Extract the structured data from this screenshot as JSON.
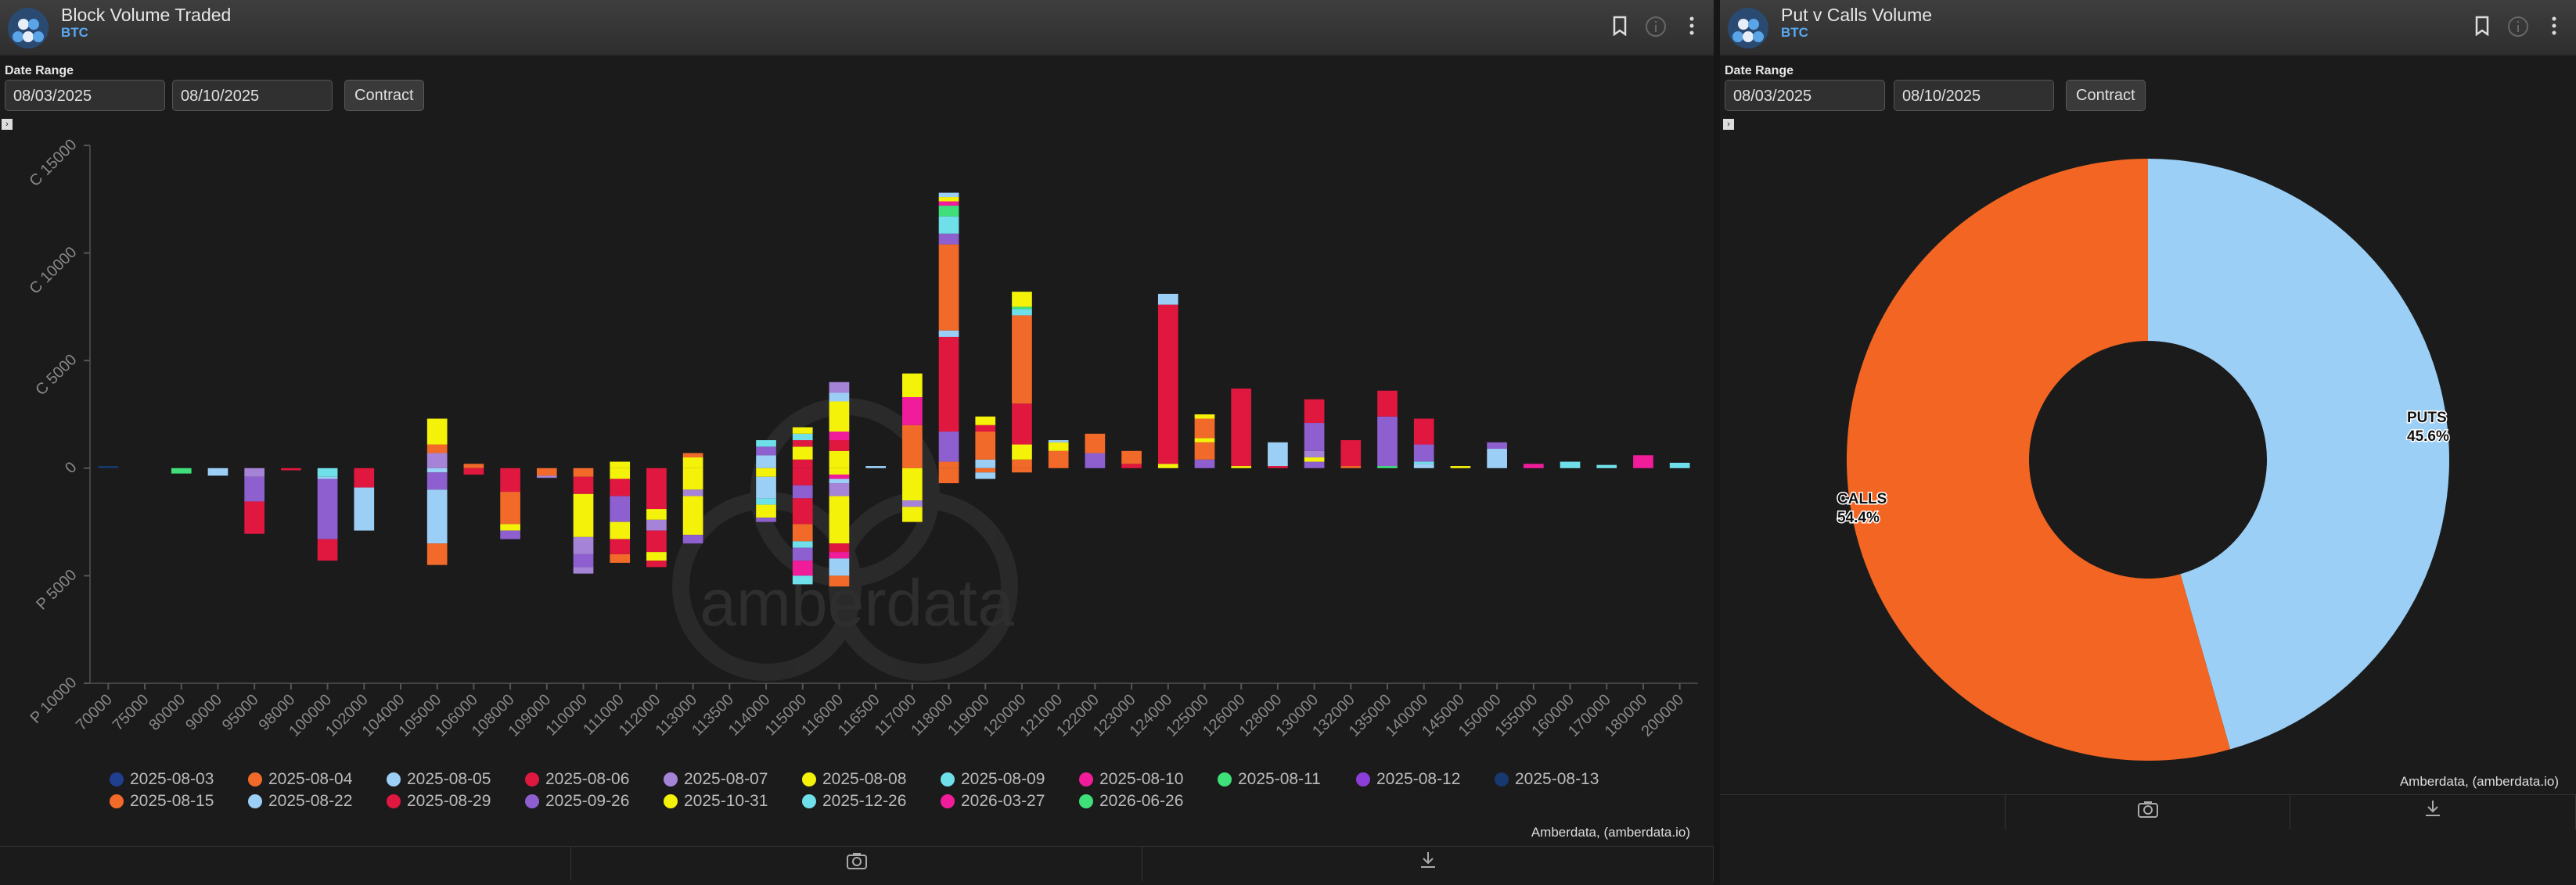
{
  "left_panel": {
    "title": "Block Volume Traded",
    "subtitle": "BTC",
    "date_range_label": "Date Range",
    "date_from": "08/03/2025",
    "date_to": "08/10/2025",
    "contract_button": "Contract",
    "credit": "Amberdata, (amberdata.io)",
    "watermark": "amberdata"
  },
  "right_panel": {
    "title": "Put v Calls Volume",
    "subtitle": "BTC",
    "date_range_label": "Date Range",
    "date_from": "08/03/2025",
    "date_to": "08/10/2025",
    "contract_button": "Contract",
    "credit": "Amberdata, (amberdata.io)"
  },
  "icons": {
    "header": [
      "bookmark-icon",
      "info-icon",
      "more-vertical-icon"
    ],
    "footer": [
      "camera-icon",
      "download-icon"
    ]
  },
  "chart_data": [
    {
      "type": "bar",
      "stacked": true,
      "title": "Block Volume Traded",
      "ylabel": "",
      "ylim": [
        -10000,
        15000
      ],
      "yticks": [
        15000,
        10000,
        5000,
        0,
        -5000,
        -10000
      ],
      "ytick_labels": [
        "C 15000",
        "C 10000",
        "C 5000",
        "0",
        "P 5000",
        "P 10000"
      ],
      "categories": [
        "70000",
        "75000",
        "80000",
        "90000",
        "95000",
        "98000",
        "100000",
        "102000",
        "104000",
        "105000",
        "106000",
        "108000",
        "109000",
        "110000",
        "111000",
        "112000",
        "113000",
        "113500",
        "114000",
        "115000",
        "116000",
        "116500",
        "117000",
        "118000",
        "119000",
        "120000",
        "121000",
        "122000",
        "123000",
        "124000",
        "125000",
        "126000",
        "128000",
        "130000",
        "132000",
        "135000",
        "140000",
        "145000",
        "150000",
        "155000",
        "160000",
        "170000",
        "180000",
        "200000"
      ],
      "legend": [
        {
          "label": "2025-08-03",
          "color": "#1f3f8f"
        },
        {
          "label": "2025-08-04",
          "color": "#f26a2a"
        },
        {
          "label": "2025-08-05",
          "color": "#9ccff5"
        },
        {
          "label": "2025-08-06",
          "color": "#e0173f"
        },
        {
          "label": "2025-08-07",
          "color": "#a584d8"
        },
        {
          "label": "2025-08-08",
          "color": "#f5f20a"
        },
        {
          "label": "2025-08-09",
          "color": "#6fe0ea"
        },
        {
          "label": "2025-08-10",
          "color": "#f11c9a"
        },
        {
          "label": "2025-08-11",
          "color": "#3fe07a"
        },
        {
          "label": "2025-08-12",
          "color": "#8d3ed8"
        },
        {
          "label": "2025-08-13",
          "color": "#17396f"
        },
        {
          "label": "2025-08-15",
          "color": "#f26a2a"
        },
        {
          "label": "2025-08-22",
          "color": "#9ccff5"
        },
        {
          "label": "2025-08-29",
          "color": "#e0173f"
        },
        {
          "label": "2025-09-26",
          "color": "#8d5fcf"
        },
        {
          "label": "2025-10-31",
          "color": "#f5f20a"
        },
        {
          "label": "2025-12-26",
          "color": "#6fe0ea"
        },
        {
          "label": "2026-03-27",
          "color": "#f11c9a"
        },
        {
          "label": "2026-06-26",
          "color": "#3fe07a"
        }
      ],
      "bars": [
        {
          "strike": "70000",
          "calls": [
            [
              10,
              100
            ]
          ],
          "puts": []
        },
        {
          "strike": "75000",
          "calls": [],
          "puts": []
        },
        {
          "strike": "80000",
          "calls": [],
          "puts": [
            [
              8,
              250
            ]
          ]
        },
        {
          "strike": "90000",
          "calls": [],
          "puts": [
            [
              12,
              350
            ]
          ]
        },
        {
          "strike": "95000",
          "calls": [],
          "puts": [
            [
              4,
              400
            ],
            [
              14,
              1150
            ],
            [
              13,
              1500
            ]
          ]
        },
        {
          "strike": "98000",
          "calls": [],
          "puts": [
            [
              3,
              100
            ]
          ]
        },
        {
          "strike": "100000",
          "calls": [],
          "puts": [
            [
              6,
              400
            ],
            [
              2,
              100
            ],
            [
              14,
              2800
            ],
            [
              13,
              1000
            ]
          ]
        },
        {
          "strike": "102000",
          "calls": [],
          "puts": [
            [
              13,
              900
            ],
            [
              2,
              2000
            ]
          ]
        },
        {
          "strike": "104000",
          "calls": [],
          "puts": []
        },
        {
          "strike": "105000",
          "calls": [
            [
              4,
              700
            ],
            [
              1,
              400
            ],
            [
              15,
              1200
            ]
          ],
          "puts": [
            [
              2,
              200
            ],
            [
              14,
              800
            ],
            [
              2,
              2500
            ],
            [
              1,
              1000
            ]
          ]
        },
        {
          "strike": "106000",
          "calls": [
            [
              1,
              200
            ]
          ],
          "puts": [
            [
              13,
              300
            ]
          ]
        },
        {
          "strike": "108000",
          "calls": [],
          "puts": [
            [
              13,
              1100
            ],
            [
              1,
              1500
            ],
            [
              15,
              300
            ],
            [
              14,
              400
            ]
          ]
        },
        {
          "strike": "109000",
          "calls": [],
          "puts": [
            [
              1,
              350
            ],
            [
              4,
              100
            ]
          ]
        },
        {
          "strike": "110000",
          "calls": [],
          "puts": [
            [
              1,
              400
            ],
            [
              13,
              800
            ],
            [
              15,
              2000
            ],
            [
              4,
              800
            ],
            [
              14,
              600
            ],
            [
              4,
              300
            ]
          ]
        },
        {
          "strike": "111000",
          "calls": [
            [
              15,
              300
            ]
          ],
          "puts": [
            [
              15,
              500
            ],
            [
              13,
              800
            ],
            [
              14,
              1200
            ],
            [
              15,
              800
            ],
            [
              13,
              700
            ],
            [
              1,
              400
            ]
          ]
        },
        {
          "strike": "112000",
          "calls": [],
          "puts": [
            [
              13,
              1900
            ],
            [
              15,
              500
            ],
            [
              4,
              500
            ],
            [
              13,
              1000
            ],
            [
              15,
              400
            ],
            [
              13,
              300
            ]
          ]
        },
        {
          "strike": "113000",
          "calls": [
            [
              15,
              500
            ],
            [
              1,
              200
            ]
          ],
          "puts": [
            [
              15,
              1000
            ],
            [
              4,
              300
            ],
            [
              15,
              1800
            ],
            [
              14,
              400
            ]
          ]
        },
        {
          "strike": "113500",
          "calls": [],
          "puts": []
        },
        {
          "strike": "114000",
          "calls": [
            [
              2,
              600
            ],
            [
              14,
              400
            ],
            [
              16,
              300
            ]
          ],
          "puts": [
            [
              15,
              400
            ],
            [
              2,
              1000
            ],
            [
              16,
              300
            ],
            [
              15,
              600
            ],
            [
              14,
              200
            ]
          ]
        },
        {
          "strike": "115000",
          "calls": [
            [
              13,
              400
            ],
            [
              15,
              600
            ],
            [
              13,
              300
            ],
            [
              16,
              300
            ],
            [
              15,
              300
            ]
          ],
          "puts": [
            [
              13,
              800
            ],
            [
              14,
              600
            ],
            [
              13,
              1200
            ],
            [
              1,
              800
            ],
            [
              16,
              300
            ],
            [
              14,
              600
            ],
            [
              17,
              700
            ],
            [
              6,
              400
            ]
          ]
        },
        {
          "strike": "116000",
          "calls": [
            [
              15,
              800
            ],
            [
              13,
              500
            ],
            [
              17,
              400
            ],
            [
              15,
              1400
            ],
            [
              2,
              400
            ],
            [
              4,
              500
            ]
          ],
          "puts": [
            [
              15,
              300
            ],
            [
              17,
              200
            ],
            [
              2,
              200
            ],
            [
              4,
              600
            ],
            [
              15,
              2200
            ],
            [
              13,
              400
            ],
            [
              17,
              300
            ],
            [
              2,
              800
            ],
            [
              1,
              500
            ]
          ]
        },
        {
          "strike": "116500",
          "calls": [
            [
              2,
              100
            ]
          ],
          "puts": []
        },
        {
          "strike": "117000",
          "calls": [
            [
              1,
              2000
            ],
            [
              17,
              1300
            ],
            [
              15,
              1100
            ]
          ],
          "puts": [
            [
              15,
              1500
            ],
            [
              4,
              300
            ],
            [
              15,
              700
            ]
          ]
        },
        {
          "strike": "118000",
          "calls": [
            [
              1,
              300
            ],
            [
              14,
              1400
            ],
            [
              13,
              4400
            ],
            [
              2,
              300
            ],
            [
              1,
              4000
            ],
            [
              14,
              500
            ],
            [
              6,
              800
            ],
            [
              8,
              500
            ],
            [
              17,
              200
            ],
            [
              15,
              200
            ],
            [
              2,
              200
            ]
          ],
          "puts": [
            [
              1,
              700
            ]
          ]
        },
        {
          "strike": "119000",
          "calls": [
            [
              2,
              400
            ],
            [
              1,
              1300
            ],
            [
              13,
              300
            ],
            [
              15,
              400
            ]
          ],
          "puts": [
            [
              1,
              200
            ],
            [
              2,
              300
            ]
          ]
        },
        {
          "strike": "120000",
          "calls": [
            [
              1,
              400
            ],
            [
              15,
              700
            ],
            [
              13,
              1900
            ],
            [
              1,
              4100
            ],
            [
              16,
              300
            ],
            [
              8,
              100
            ],
            [
              15,
              700
            ]
          ],
          "puts": [
            [
              1,
              200
            ]
          ]
        },
        {
          "strike": "121000",
          "calls": [
            [
              1,
              800
            ],
            [
              15,
              400
            ],
            [
              2,
              100
            ]
          ],
          "puts": []
        },
        {
          "strike": "122000",
          "calls": [
            [
              14,
              700
            ],
            [
              1,
              900
            ]
          ],
          "puts": []
        },
        {
          "strike": "123000",
          "calls": [
            [
              13,
              200
            ],
            [
              1,
              600
            ]
          ],
          "puts": []
        },
        {
          "strike": "124000",
          "calls": [
            [
              15,
              200
            ],
            [
              13,
              7400
            ],
            [
              2,
              500
            ]
          ],
          "puts": []
        },
        {
          "strike": "125000",
          "calls": [
            [
              14,
              400
            ],
            [
              1,
              800
            ],
            [
              15,
              200
            ],
            [
              1,
              900
            ],
            [
              15,
              200
            ]
          ],
          "puts": []
        },
        {
          "strike": "126000",
          "calls": [
            [
              15,
              100
            ],
            [
              13,
              3600
            ]
          ],
          "puts": []
        },
        {
          "strike": "128000",
          "calls": [
            [
              13,
              100
            ],
            [
              2,
              1100
            ]
          ],
          "puts": []
        },
        {
          "strike": "130000",
          "calls": [
            [
              14,
              300
            ],
            [
              15,
              200
            ],
            [
              4,
              300
            ],
            [
              14,
              1300
            ],
            [
              13,
              1100
            ]
          ],
          "puts": []
        },
        {
          "strike": "132000",
          "calls": [
            [
              1,
              100
            ],
            [
              13,
              1200
            ]
          ],
          "puts": []
        },
        {
          "strike": "135000",
          "calls": [
            [
              8,
              100
            ],
            [
              14,
              2300
            ],
            [
              13,
              1200
            ]
          ],
          "puts": []
        },
        {
          "strike": "140000",
          "calls": [
            [
              2,
              200
            ],
            [
              6,
              100
            ],
            [
              14,
              800
            ],
            [
              13,
              1200
            ]
          ],
          "puts": []
        },
        {
          "strike": "145000",
          "calls": [
            [
              15,
              100
            ]
          ],
          "puts": []
        },
        {
          "strike": "150000",
          "calls": [
            [
              12,
              900
            ],
            [
              14,
              300
            ]
          ],
          "puts": []
        },
        {
          "strike": "155000",
          "calls": [
            [
              17,
              200
            ]
          ],
          "puts": []
        },
        {
          "strike": "160000",
          "calls": [
            [
              16,
              300
            ]
          ],
          "puts": []
        },
        {
          "strike": "170000",
          "calls": [
            [
              16,
              150
            ]
          ],
          "puts": []
        },
        {
          "strike": "180000",
          "calls": [
            [
              17,
              600
            ]
          ],
          "puts": []
        },
        {
          "strike": "200000",
          "calls": [
            [
              16,
              250
            ]
          ],
          "puts": []
        }
      ]
    },
    {
      "type": "pie",
      "donut": true,
      "title": "Put v Calls Volume",
      "slices": [
        {
          "label": "PUTS",
          "value": 45.6,
          "value_label": "45.6%",
          "color": "#9ccff5"
        },
        {
          "label": "CALLS",
          "value": 54.4,
          "value_label": "54.4%",
          "color": "#f26522"
        }
      ]
    }
  ]
}
